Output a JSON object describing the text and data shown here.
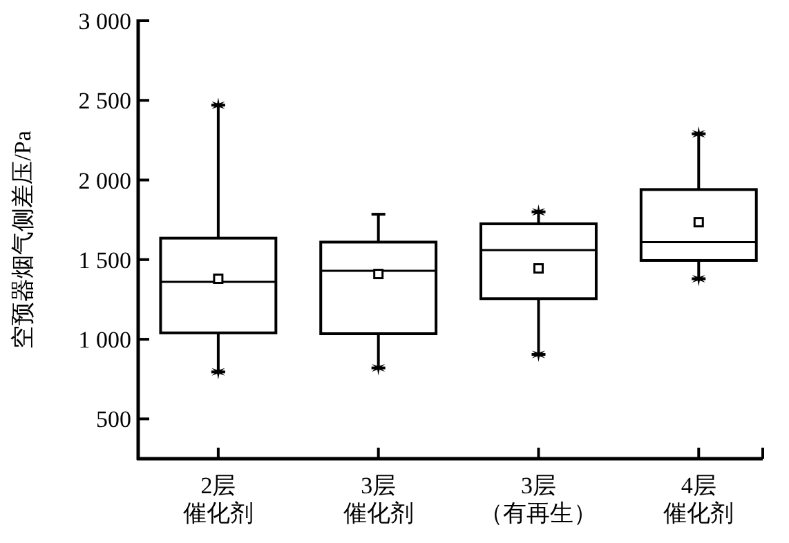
{
  "chart_data": {
    "type": "box",
    "ylabel": "空预器烟气侧差压/Pa",
    "categories": [
      "2层催化剂",
      "3层催化剂",
      "3层（有再生）",
      "4层催化剂"
    ],
    "boxes": [
      {
        "low": 795,
        "q1": 1040,
        "median": 1360,
        "q3": 1635,
        "high": 2470,
        "mean": 1380,
        "outliers": [
          795,
          2470
        ]
      },
      {
        "low": 820,
        "q1": 1035,
        "median": 1430,
        "q3": 1610,
        "high": 1785,
        "mean": 1410,
        "outliers": [
          820
        ]
      },
      {
        "low": 905,
        "q1": 1255,
        "median": 1560,
        "q3": 1725,
        "high": 1800,
        "mean": 1445,
        "outliers": [
          905,
          1800
        ]
      },
      {
        "low": 1380,
        "q1": 1495,
        "median": 1610,
        "q3": 1940,
        "high": 2290,
        "mean": 1735,
        "outliers": [
          1380,
          2290
        ]
      }
    ],
    "ylim": [
      250,
      3000
    ],
    "yticks": [
      {
        "value": 500,
        "label": "500"
      },
      {
        "value": 1000,
        "label": "1 000"
      },
      {
        "value": 1500,
        "label": "1 500"
      },
      {
        "value": 2000,
        "label": "2 000"
      },
      {
        "value": 2500,
        "label": "2 500"
      },
      {
        "value": 3000,
        "label": "3 000"
      }
    ],
    "grid": false
  }
}
